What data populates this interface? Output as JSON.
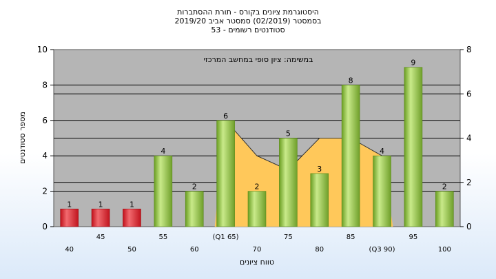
{
  "chart_data": {
    "type": "bar",
    "title_lines": [
      "היסטוגרמת ציונים בקורס - תורת ההסתברות",
      "בסמסטר  (02/2019)  סמסטר אביב 2019/20",
      "סטודנטים רשומים - 53"
    ],
    "annotation": "במשימה: ציון סופי במחשב המרכזי",
    "ylabel": "מספר סטודנטים",
    "xlabel": "טווח ציונים",
    "ylim": [
      0,
      10
    ],
    "yticks": [
      0,
      2,
      4,
      6,
      8,
      10
    ],
    "y2lim": [
      0,
      8
    ],
    "y2ticks": [
      0,
      2,
      4,
      6,
      8
    ],
    "categories": [
      "40",
      "45",
      "50",
      "55",
      "60",
      "(Q1 65)",
      "70",
      "75",
      "80",
      "85",
      "(Q3 90)",
      "95",
      "100"
    ],
    "values": [
      1,
      1,
      1,
      4,
      2,
      6,
      2,
      5,
      3,
      8,
      4,
      9,
      2
    ],
    "bar_colors": [
      "red",
      "red",
      "red",
      "green",
      "green",
      "green",
      "green",
      "green",
      "green",
      "green",
      "green",
      "green",
      "green"
    ],
    "area_values": [
      null,
      null,
      null,
      null,
      null,
      6,
      4,
      3.2,
      5,
      5,
      4,
      null,
      null
    ],
    "colors": {
      "red": "#e8202a",
      "green": "#8cc63f",
      "area": "#ffc85a",
      "plot_bg": "#b5b5b5"
    }
  }
}
